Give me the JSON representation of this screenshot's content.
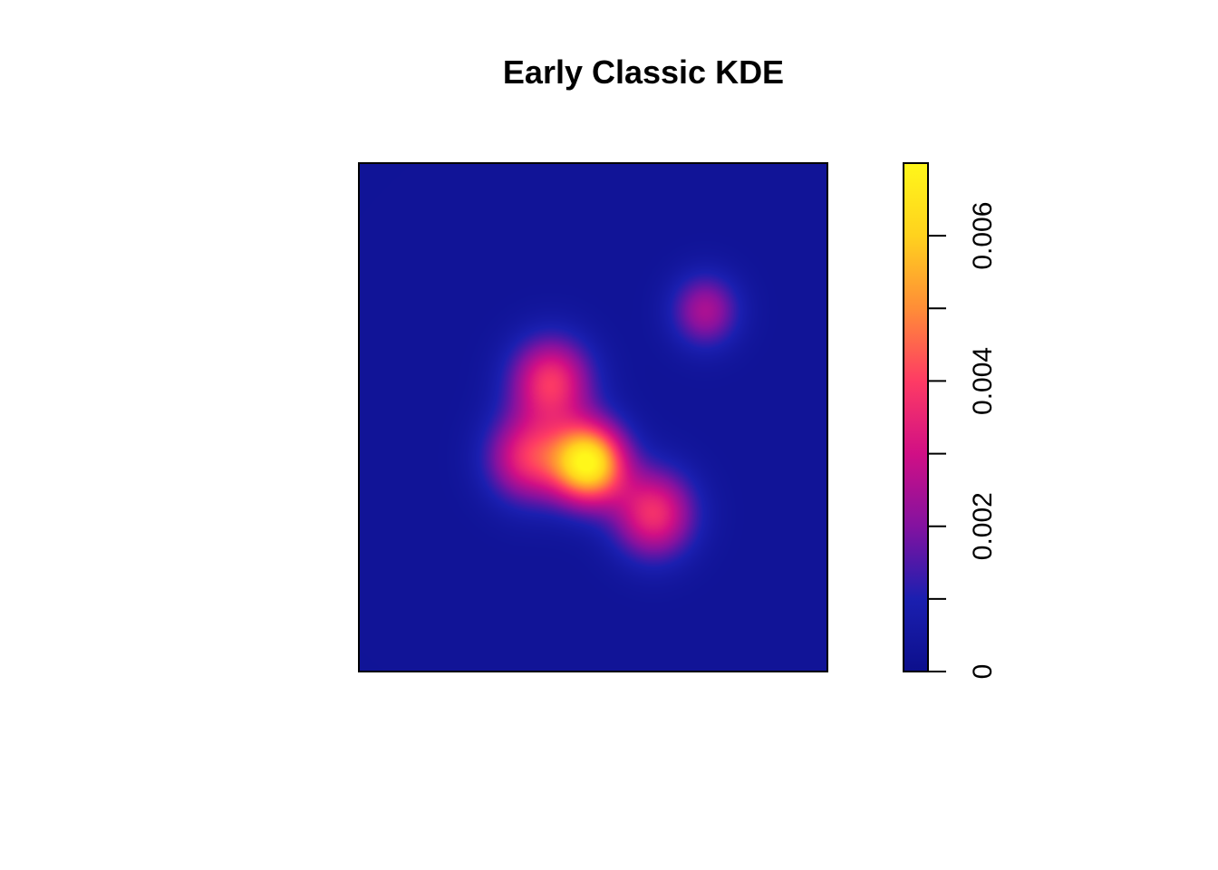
{
  "chart_data": {
    "type": "heatmap",
    "title": "Early Classic KDE",
    "xlabel": "",
    "ylabel": "",
    "axes_shown": false,
    "colorbar": {
      "min": 0,
      "max": 0.007,
      "ticks": [
        0,
        0.001,
        0.002,
        0.003,
        0.004,
        0.005,
        0.006
      ],
      "labeled_ticks": [
        {
          "value": 0,
          "label": "0"
        },
        {
          "value": 0.002,
          "label": "0.002"
        },
        {
          "value": 0.004,
          "label": "0.004"
        },
        {
          "value": 0.006,
          "label": "0.006"
        }
      ],
      "colors": [
        "#0c0f8c",
        "#1b1fb0",
        "#8312a0",
        "#d10f85",
        "#fe3b64",
        "#ff8d37",
        "#ffd21e",
        "#fff71a"
      ]
    },
    "density_kernels": [
      {
        "x": 0.49,
        "y": 0.41,
        "amplitude": 0.0065,
        "sigma": 0.055
      },
      {
        "x": 0.41,
        "y": 0.57,
        "amplitude": 0.0035,
        "sigma": 0.06
      },
      {
        "x": 0.36,
        "y": 0.42,
        "amplitude": 0.0032,
        "sigma": 0.06
      },
      {
        "x": 0.63,
        "y": 0.31,
        "amplitude": 0.0034,
        "sigma": 0.06
      },
      {
        "x": 0.74,
        "y": 0.71,
        "amplitude": 0.0022,
        "sigma": 0.05
      }
    ],
    "background_level": 0.0003
  }
}
